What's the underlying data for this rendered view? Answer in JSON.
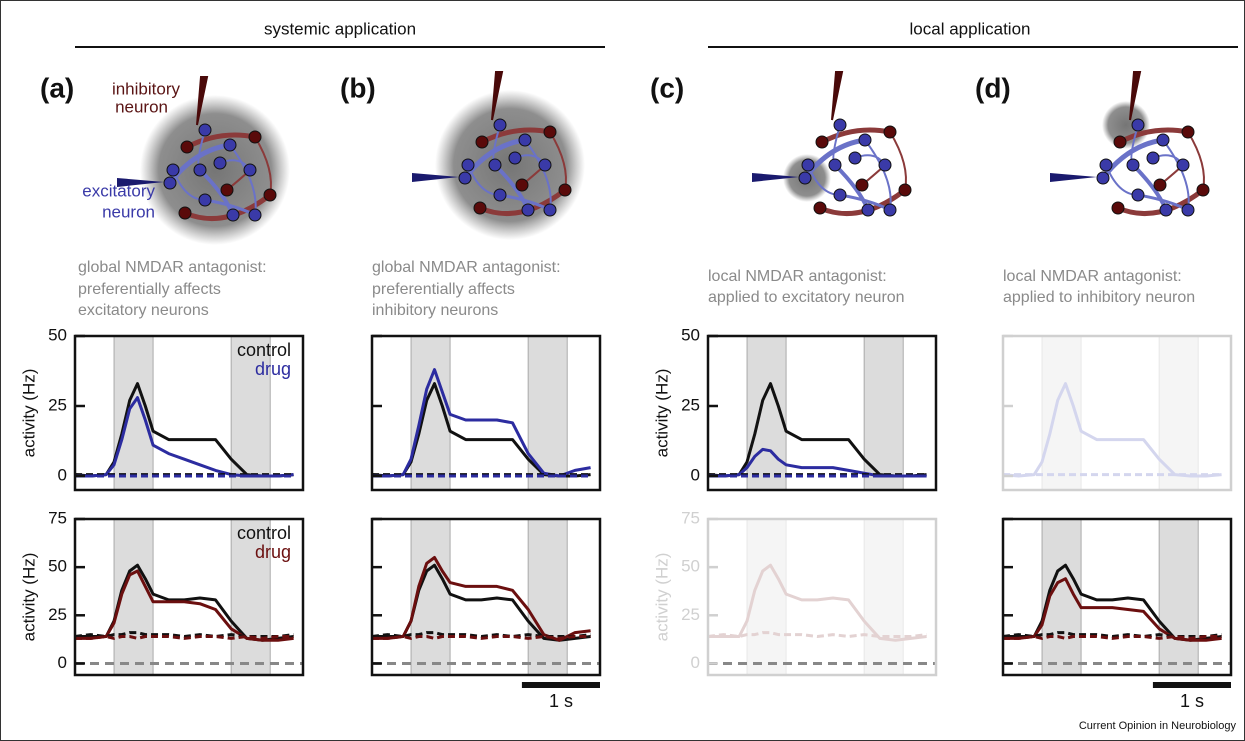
{
  "header": {
    "systemic": "systemic application",
    "local": "local application"
  },
  "panels": [
    {
      "label": "(a)",
      "caption": [
        "global NMDAR antagonist:",
        "preferentially affects",
        "excitatory neurons"
      ]
    },
    {
      "label": "(b)",
      "caption": [
        "global NMDAR antagonist:",
        "preferentially affects",
        "inhibitory neurons"
      ]
    },
    {
      "label": "(c)",
      "caption": [
        "local NMDAR antagonist:",
        "applied to excitatory neuron"
      ]
    },
    {
      "label": "(d)",
      "caption": [
        "local NMDAR antagonist:",
        "applied to inhibitory neuron"
      ]
    }
  ],
  "diagram_labels": {
    "inhibitory": [
      "inhibitory",
      "neuron"
    ],
    "excitatory": [
      "excitatory",
      "neuron"
    ]
  },
  "credit": "Current Opinion in Neurobiology",
  "chart_data": [
    {
      "type": "line",
      "y_label": "activity (Hz)",
      "x": [
        0,
        0.2,
        0.4,
        0.5,
        0.6,
        0.7,
        0.8,
        0.9,
        1.0,
        1.2,
        1.4,
        1.6,
        1.8,
        2.0,
        2.2,
        2.4,
        2.6,
        2.8
      ],
      "xlim": [
        0,
        2.92
      ],
      "ylim": [
        -5,
        50
      ],
      "yticks": [
        0,
        25,
        50
      ],
      "tick_labels": true,
      "zero_line": false,
      "legend": true,
      "shaded": [
        [
          0.5,
          1.0
        ],
        [
          2.0,
          2.5
        ]
      ],
      "shade_color": "#dcdcdc",
      "frame_color": "#111111",
      "text_color": "#111111",
      "series": [
        {
          "name": "control",
          "color": "#111111",
          "values": [
            0.5,
            0,
            0.5,
            5,
            15,
            27,
            33,
            25,
            16,
            13,
            13,
            13,
            13,
            6,
            0.5,
            0,
            0,
            0.5
          ]
        },
        {
          "name": "drug",
          "color": "#2c2ca0",
          "values": [
            0,
            0,
            0.5,
            4,
            13,
            24,
            28,
            20,
            11,
            8,
            6,
            4,
            2,
            0.5,
            0,
            0,
            0,
            0.5
          ]
        },
        {
          "color": "#111111",
          "dashed": true,
          "values": [
            0.5,
            0.5,
            0.5,
            0.5,
            0.5,
            0.5,
            0.5,
            0.5,
            0.5,
            0.5,
            0.5,
            0.5,
            0.5,
            0.5,
            0.5,
            0.5,
            0.5,
            0.5
          ]
        },
        {
          "color": "#2c2ca0",
          "dashed": true,
          "values": [
            0,
            0,
            0,
            0,
            0,
            0,
            0,
            0,
            0,
            0,
            0,
            0,
            0,
            0,
            0,
            0,
            0,
            0
          ]
        }
      ]
    },
    {
      "type": "line",
      "x": [
        0,
        0.2,
        0.4,
        0.5,
        0.6,
        0.7,
        0.8,
        0.9,
        1.0,
        1.2,
        1.4,
        1.6,
        1.8,
        2.0,
        2.2,
        2.4,
        2.6,
        2.8
      ],
      "xlim": [
        0,
        2.92
      ],
      "ylim": [
        -5,
        50
      ],
      "yticks": [
        0,
        25,
        50
      ],
      "tick_labels": false,
      "zero_line": false,
      "legend": false,
      "shaded": [
        [
          0.5,
          1.0
        ],
        [
          2.0,
          2.5
        ]
      ],
      "shade_color": "#dcdcdc",
      "frame_color": "#111111",
      "text_color": "#111111",
      "series": [
        {
          "color": "#111111",
          "values": [
            0.5,
            0,
            0.5,
            5,
            15,
            27,
            33,
            25,
            16,
            13,
            13,
            13,
            13,
            6,
            0.5,
            0,
            0,
            0.5
          ]
        },
        {
          "color": "#2c2ca0",
          "values": [
            0,
            0,
            0.5,
            6,
            18,
            31,
            38,
            30,
            22,
            20,
            20,
            20,
            19,
            8,
            1,
            0,
            2,
            3
          ]
        },
        {
          "color": "#111111",
          "dashed": true,
          "values": [
            0.5,
            0.5,
            0.5,
            0.5,
            0.5,
            0.5,
            0.5,
            0.5,
            0.5,
            0.5,
            0.5,
            0.5,
            0.5,
            0.5,
            0.5,
            0.5,
            0.5,
            0.5
          ]
        },
        {
          "color": "#2c2ca0",
          "dashed": true,
          "values": [
            0,
            0,
            0,
            0,
            0,
            0,
            0,
            0,
            0,
            0,
            0,
            0,
            0,
            0,
            0,
            0,
            0,
            0
          ]
        }
      ]
    },
    {
      "type": "line",
      "y_label": "activity (Hz)",
      "x": [
        0,
        0.2,
        0.4,
        0.5,
        0.6,
        0.7,
        0.8,
        0.9,
        1.0,
        1.2,
        1.4,
        1.6,
        1.8,
        2.0,
        2.2,
        2.4,
        2.6,
        2.8
      ],
      "xlim": [
        0,
        2.92
      ],
      "ylim": [
        -5,
        50
      ],
      "yticks": [
        0,
        25,
        50
      ],
      "tick_labels": true,
      "zero_line": false,
      "legend": false,
      "shaded": [
        [
          0.5,
          1.0
        ],
        [
          2.0,
          2.5
        ]
      ],
      "shade_color": "#dcdcdc",
      "frame_color": "#111111",
      "text_color": "#111111",
      "series": [
        {
          "color": "#111111",
          "values": [
            0.5,
            0,
            0.5,
            5,
            15,
            27,
            33,
            25,
            16,
            13,
            13,
            13,
            13,
            6,
            0.5,
            0,
            0,
            0.5
          ]
        },
        {
          "color": "#2c2ca0",
          "values": [
            0,
            0,
            0.5,
            3,
            7,
            9.5,
            9,
            6,
            4,
            3,
            3,
            3,
            2,
            1,
            0,
            0,
            0,
            0
          ]
        },
        {
          "color": "#111111",
          "dashed": true,
          "values": [
            0.5,
            0.5,
            0.5,
            0.5,
            0.5,
            0.5,
            0.5,
            0.5,
            0.5,
            0.5,
            0.5,
            0.5,
            0.5,
            0.5,
            0.5,
            0.5,
            0.5,
            0.5
          ]
        },
        {
          "color": "#2c2ca0",
          "dashed": true,
          "values": [
            0,
            0,
            0,
            0,
            0,
            0,
            0,
            0,
            0,
            0,
            0,
            0,
            0,
            0,
            0,
            0,
            0,
            0
          ]
        }
      ]
    },
    {
      "type": "line",
      "x": [
        0,
        0.2,
        0.4,
        0.5,
        0.6,
        0.7,
        0.8,
        0.9,
        1.0,
        1.2,
        1.4,
        1.6,
        1.8,
        2.0,
        2.2,
        2.4,
        2.6,
        2.8
      ],
      "xlim": [
        0,
        2.92
      ],
      "ylim": [
        -5,
        50
      ],
      "yticks": [
        0,
        25,
        50
      ],
      "tick_labels": false,
      "zero_line": false,
      "legend": false,
      "shaded": [
        [
          0.5,
          1.0
        ],
        [
          2.0,
          2.5
        ]
      ],
      "shade_color": "#f5f5f5",
      "frame_color": "#d0d0d0",
      "text_color": "#d0d0d0",
      "series": [
        {
          "color": "#d4d6ee",
          "values": [
            0.5,
            0,
            0.5,
            5,
            15,
            27,
            33,
            25,
            16,
            13,
            13,
            13,
            13,
            6,
            0.5,
            0,
            0,
            0.5
          ]
        },
        {
          "color": "#d4d6ee",
          "dashed": true,
          "values": [
            0.5,
            0.5,
            0.5,
            0.5,
            0.5,
            0.5,
            0.5,
            0.5,
            0.5,
            0.5,
            0.5,
            0.5,
            0.5,
            0.5,
            0.5,
            0.5,
            0.5,
            0.5
          ]
        }
      ]
    },
    {
      "type": "line",
      "y_label": "activity (Hz)",
      "x": [
        0,
        0.2,
        0.4,
        0.5,
        0.6,
        0.7,
        0.8,
        0.9,
        1.0,
        1.2,
        1.4,
        1.6,
        1.8,
        2.0,
        2.2,
        2.4,
        2.6,
        2.8
      ],
      "xlim": [
        0,
        2.92
      ],
      "ylim": [
        -6,
        75
      ],
      "yticks": [
        0,
        25,
        50,
        75
      ],
      "tick_labels": true,
      "zero_line": true,
      "legend": true,
      "shaded": [
        [
          0.5,
          1.0
        ],
        [
          2.0,
          2.5
        ]
      ],
      "shade_color": "#dcdcdc",
      "frame_color": "#111111",
      "text_color": "#111111",
      "series": [
        {
          "name": "control",
          "color": "#111111",
          "values": [
            14,
            14,
            14,
            22,
            38,
            48,
            51,
            44,
            36,
            33,
            33,
            34,
            33,
            22,
            13,
            12,
            13,
            14
          ]
        },
        {
          "name": "drug",
          "color": "#6b0f0f",
          "values": [
            13,
            13,
            14,
            21,
            36,
            46,
            48,
            40,
            32,
            32,
            32,
            31,
            28,
            18,
            13,
            12,
            12,
            13
          ]
        },
        {
          "color": "#111111",
          "dashed": true,
          "values": [
            14,
            15,
            14,
            15,
            15,
            16,
            16,
            15,
            15,
            15,
            14,
            15,
            14,
            15,
            14,
            14,
            14,
            15
          ]
        },
        {
          "color": "#6b0f0f",
          "dashed": true,
          "values": [
            13,
            13,
            14,
            13,
            14,
            14,
            13,
            14,
            14,
            14,
            13,
            14,
            14,
            13,
            14,
            13,
            14,
            14
          ]
        }
      ]
    },
    {
      "type": "line",
      "x": [
        0,
        0.2,
        0.4,
        0.5,
        0.6,
        0.7,
        0.8,
        0.9,
        1.0,
        1.2,
        1.4,
        1.6,
        1.8,
        2.0,
        2.2,
        2.4,
        2.6,
        2.8
      ],
      "xlim": [
        0,
        2.92
      ],
      "ylim": [
        -6,
        75
      ],
      "yticks": [
        0,
        25,
        50,
        75
      ],
      "tick_labels": false,
      "zero_line": true,
      "legend": false,
      "shaded": [
        [
          0.5,
          1.0
        ],
        [
          2.0,
          2.5
        ]
      ],
      "shade_color": "#dcdcdc",
      "frame_color": "#111111",
      "text_color": "#111111",
      "scale_bar": {
        "length": 1,
        "label": "1 s"
      },
      "series": [
        {
          "color": "#111111",
          "values": [
            14,
            14,
            14,
            22,
            38,
            48,
            51,
            44,
            36,
            33,
            33,
            34,
            33,
            22,
            13,
            12,
            13,
            14
          ]
        },
        {
          "color": "#6b0f0f",
          "values": [
            13,
            13,
            14,
            22,
            40,
            52,
            55,
            48,
            42,
            40,
            40,
            40,
            38,
            28,
            15,
            12,
            16,
            17
          ]
        },
        {
          "color": "#111111",
          "dashed": true,
          "values": [
            14,
            15,
            14,
            15,
            15,
            16,
            16,
            15,
            15,
            15,
            14,
            15,
            14,
            15,
            14,
            14,
            14,
            15
          ]
        },
        {
          "color": "#6b0f0f",
          "dashed": true,
          "values": [
            13,
            13,
            14,
            13,
            14,
            14,
            13,
            14,
            14,
            14,
            13,
            14,
            14,
            13,
            14,
            13,
            14,
            14
          ]
        }
      ]
    },
    {
      "type": "line",
      "y_label": "activity (Hz)",
      "x": [
        0,
        0.2,
        0.4,
        0.5,
        0.6,
        0.7,
        0.8,
        0.9,
        1.0,
        1.2,
        1.4,
        1.6,
        1.8,
        2.0,
        2.2,
        2.4,
        2.6,
        2.8
      ],
      "xlim": [
        0,
        2.92
      ],
      "ylim": [
        -6,
        75
      ],
      "yticks": [
        0,
        25,
        50,
        75
      ],
      "tick_labels": true,
      "zero_line": true,
      "legend": false,
      "shaded": [
        [
          0.5,
          1.0
        ],
        [
          2.0,
          2.5
        ]
      ],
      "shade_color": "#f5f5f5",
      "frame_color": "#d0d0d0",
      "text_color": "#d0d0d0",
      "series": [
        {
          "color": "#e3d2d2",
          "values": [
            14,
            14,
            14,
            22,
            38,
            48,
            51,
            44,
            36,
            33,
            33,
            34,
            33,
            22,
            13,
            12,
            13,
            14
          ]
        },
        {
          "color": "#e3d2d2",
          "dashed": true,
          "values": [
            14,
            15,
            14,
            15,
            15,
            16,
            16,
            15,
            15,
            15,
            14,
            15,
            14,
            15,
            14,
            14,
            14,
            15
          ]
        }
      ]
    },
    {
      "type": "line",
      "x": [
        0,
        0.2,
        0.4,
        0.5,
        0.6,
        0.7,
        0.8,
        0.9,
        1.0,
        1.2,
        1.4,
        1.6,
        1.8,
        2.0,
        2.2,
        2.4,
        2.6,
        2.8
      ],
      "xlim": [
        0,
        2.92
      ],
      "ylim": [
        -6,
        75
      ],
      "yticks": [
        0,
        25,
        50,
        75
      ],
      "tick_labels": false,
      "zero_line": true,
      "legend": false,
      "shaded": [
        [
          0.5,
          1.0
        ],
        [
          2.0,
          2.5
        ]
      ],
      "shade_color": "#dcdcdc",
      "frame_color": "#111111",
      "text_color": "#111111",
      "scale_bar": {
        "length": 1,
        "label": "1 s"
      },
      "series": [
        {
          "color": "#111111",
          "values": [
            14,
            14,
            14,
            22,
            38,
            48,
            51,
            44,
            36,
            33,
            33,
            34,
            33,
            22,
            13,
            12,
            13,
            14
          ]
        },
        {
          "color": "#6b0f0f",
          "values": [
            13,
            13,
            14,
            20,
            35,
            42,
            44,
            36,
            29,
            29,
            29,
            28,
            27,
            18,
            13,
            12,
            12,
            13
          ]
        },
        {
          "color": "#111111",
          "dashed": true,
          "values": [
            14,
            15,
            14,
            15,
            15,
            16,
            16,
            15,
            15,
            15,
            14,
            15,
            14,
            15,
            14,
            14,
            14,
            15
          ]
        },
        {
          "color": "#6b0f0f",
          "dashed": true,
          "values": [
            13,
            13,
            14,
            13,
            14,
            14,
            13,
            14,
            14,
            14,
            13,
            14,
            14,
            13,
            14,
            13,
            14,
            14
          ]
        }
      ]
    }
  ]
}
